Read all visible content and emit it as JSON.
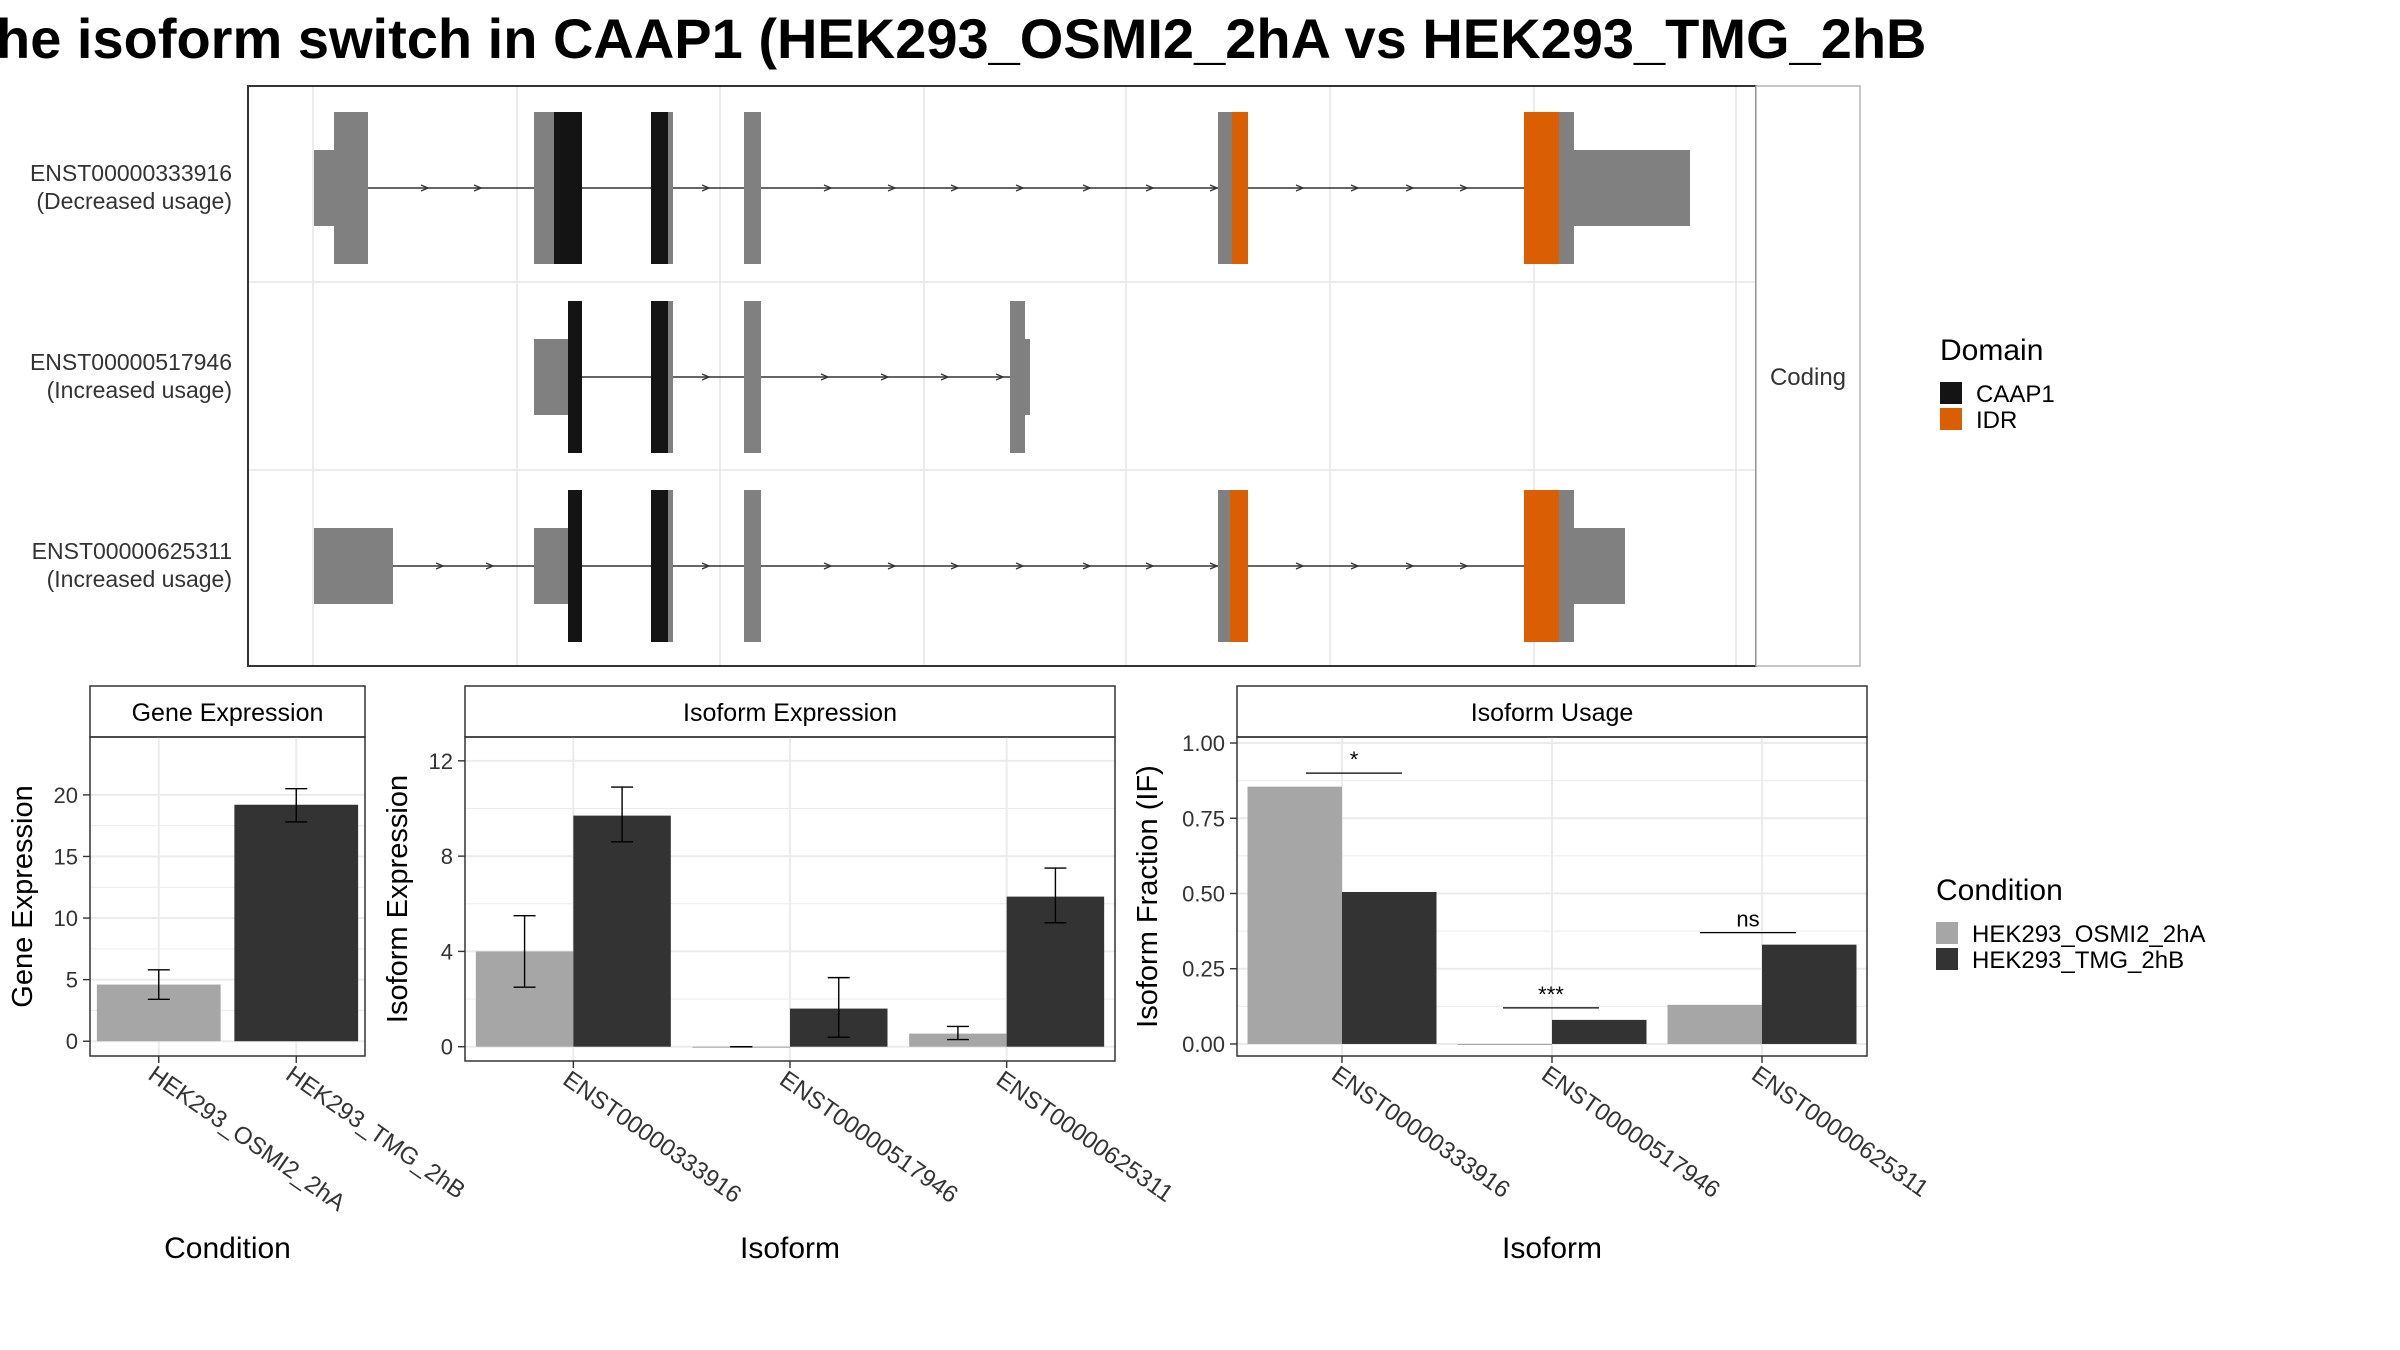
{
  "title": "he isoform switch in CAAP1 (HEK293_OSMI2_2hA vs HEK293_TMG_2hB",
  "colors": {
    "exon": "#808080",
    "caap1": "#141414",
    "idr": "#d95f02",
    "cond_a": "#a6a6a6",
    "cond_b": "#333333",
    "grid": "#ebebeb",
    "strip_bg": "#ffffff",
    "border": "#333333"
  },
  "transcripts": {
    "strip_label": "Coding",
    "rows": [
      {
        "id": "ENST00000333916",
        "note": "(Decreased usage)"
      },
      {
        "id": "ENST00000517946",
        "note": "(Increased usage)"
      },
      {
        "id": "ENST00000625311",
        "note": "(Increased usage)"
      }
    ]
  },
  "legend_domain": {
    "title": "Domain",
    "items": [
      {
        "label": "CAAP1",
        "color": "#141414"
      },
      {
        "label": "IDR",
        "color": "#d95f02"
      }
    ]
  },
  "legend_condition": {
    "title": "Condition",
    "items": [
      {
        "label": "HEK293_OSMI2_2hA",
        "color": "#a6a6a6"
      },
      {
        "label": "HEK293_TMG_2hB",
        "color": "#333333"
      }
    ]
  },
  "chart_data": [
    {
      "type": "bar",
      "title": "Gene Expression",
      "xlabel": "Condition",
      "ylabel": "Gene Expression",
      "categories": [
        "HEK293_OSMI2_2hA",
        "HEK293_TMG_2hB"
      ],
      "values": [
        4.6,
        19.2
      ],
      "error": [
        [
          3.4,
          5.8
        ],
        [
          17.8,
          20.5
        ]
      ],
      "ylim": [
        -1.2,
        24.7
      ],
      "yticks": [
        0,
        5,
        10,
        15,
        20
      ],
      "grid": true
    },
    {
      "type": "bar",
      "title": "Isoform Expression",
      "xlabel": "Isoform",
      "ylabel": "Isoform Expression",
      "categories": [
        "ENST00000333916",
        "ENST00000517946",
        "ENST00000625311"
      ],
      "series": [
        {
          "name": "HEK293_OSMI2_2hA",
          "values": [
            4.0,
            0.0,
            0.55
          ],
          "error": [
            [
              2.5,
              5.5
            ],
            [
              0.0,
              0.0
            ],
            [
              0.3,
              0.85
            ]
          ]
        },
        {
          "name": "HEK293_TMG_2hB",
          "values": [
            9.7,
            1.6,
            6.3
          ],
          "error": [
            [
              8.6,
              10.9
            ],
            [
              0.4,
              2.9
            ],
            [
              5.2,
              7.5
            ]
          ]
        }
      ],
      "ylim": [
        -0.6,
        13.0
      ],
      "yticks": [
        0,
        4,
        8,
        12
      ],
      "grid": true
    },
    {
      "type": "bar",
      "title": "Isoform Usage",
      "xlabel": "Isoform",
      "ylabel": "Isoform Fraction (IF)",
      "categories": [
        "ENST00000333916",
        "ENST00000517946",
        "ENST00000625311"
      ],
      "series": [
        {
          "name": "HEK293_OSMI2_2hA",
          "values": [
            0.855,
            0.0,
            0.13
          ]
        },
        {
          "name": "HEK293_TMG_2hB",
          "values": [
            0.505,
            0.08,
            0.33
          ]
        }
      ],
      "significance": [
        {
          "label": "*",
          "y": 0.9
        },
        {
          "label": "***",
          "y": 0.12
        },
        {
          "label": "ns",
          "y": 0.37
        }
      ],
      "ylim": [
        -0.04,
        1.02
      ],
      "yticks": [
        0.0,
        0.25,
        0.5,
        0.75,
        1.0
      ],
      "ytick_labels": [
        "0.00",
        "0.25",
        "0.50",
        "0.75",
        "1.00"
      ],
      "grid": true
    }
  ]
}
